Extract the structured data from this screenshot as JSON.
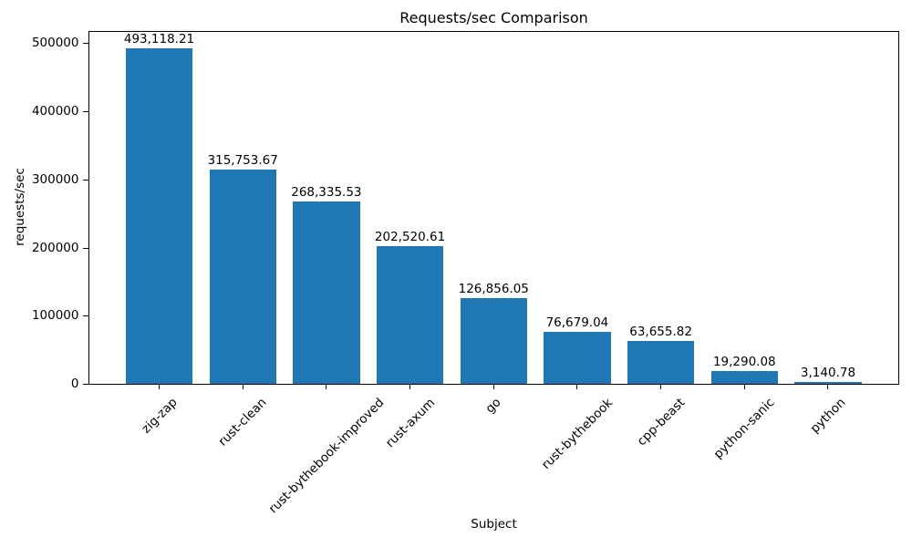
{
  "chart_data": {
    "type": "bar",
    "title": "Requests/sec Comparison",
    "xlabel": "Subject",
    "ylabel": "requests/sec",
    "categories": [
      "zig-zap",
      "rust-clean",
      "rust-bythebook-improved",
      "rust-axum",
      "go",
      "rust-bythebook",
      "cpp-beast",
      "python-sanic",
      "python"
    ],
    "values": [
      493118.21,
      315753.67,
      268335.53,
      202520.61,
      126856.05,
      76679.04,
      63655.82,
      19290.08,
      3140.78
    ],
    "value_labels": [
      "493,118.21",
      "315,753.67",
      "268,335.53",
      "202,520.61",
      "126,856.05",
      "76,679.04",
      "63,655.82",
      "19,290.08",
      "3,140.78"
    ],
    "yticks": [
      0,
      100000,
      200000,
      300000,
      400000,
      500000
    ],
    "ytick_labels": [
      "0",
      "100000",
      "200000",
      "300000",
      "400000",
      "500000"
    ],
    "ylim": [
      0,
      518000
    ],
    "bar_color": "#1f77b4",
    "grid": false,
    "legend": null,
    "x_tick_rotation_deg": 45
  }
}
